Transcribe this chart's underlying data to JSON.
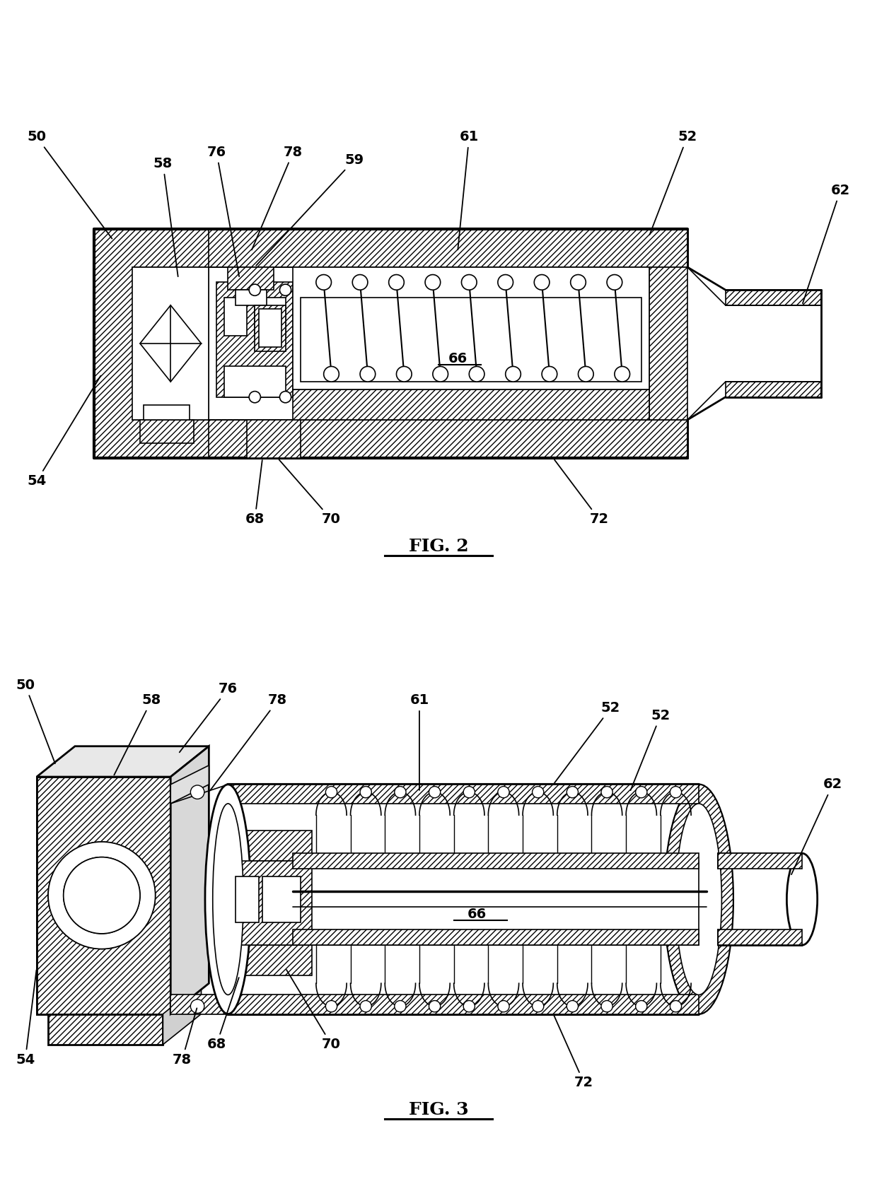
{
  "fig_width": 12.4,
  "fig_height": 16.85,
  "dpi": 100,
  "bg": "#ffffff",
  "lc": "#000000",
  "lw_main": 2.0,
  "lw_thin": 1.2,
  "fs_label": 14,
  "fs_title": 18,
  "fig2_title": "FIG. 2",
  "fig3_title": "FIG. 3"
}
